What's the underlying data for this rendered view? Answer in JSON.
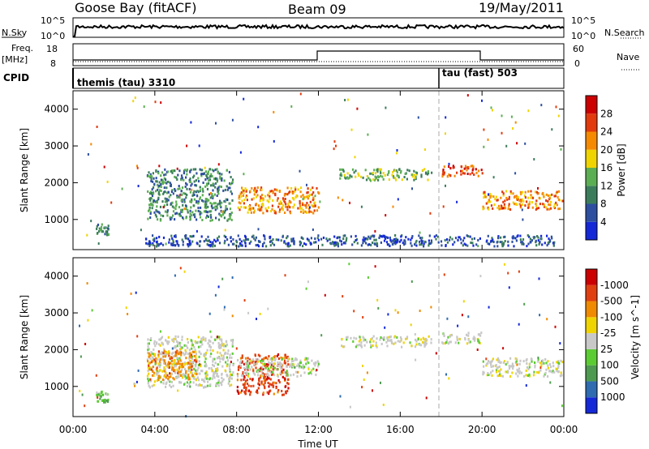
{
  "header": {
    "station": "Goose Bay (fitACF)",
    "beam": "Beam 09",
    "date": "19/May/2011"
  },
  "top_panel": {
    "left_label": "N.Sky",
    "right_label": "N.Search",
    "left_ticks": [
      "10^5",
      "10^0"
    ],
    "right_ticks": [
      "10^5",
      "10^0"
    ]
  },
  "freq_panel": {
    "left_label_1": "Freq.",
    "left_label_2": "[MHz]",
    "right_label": "Nave",
    "left_ticks": [
      "18",
      "8"
    ],
    "right_ticks": [
      "60",
      "0"
    ]
  },
  "cpid_panel": {
    "label": "CPID",
    "mode_1": "themis (tau) 3310",
    "mode_2": "tau (fast) 503"
  },
  "x_axis": {
    "label": "Time UT",
    "ticks": [
      "00:00",
      "04:00",
      "08:00",
      "12:00",
      "16:00",
      "20:00",
      "00:00"
    ]
  },
  "chart_data": [
    {
      "type": "heatmap",
      "ylabel": "Slant Range [km]",
      "y_ticks": [
        "1000",
        "2000",
        "3000",
        "4000"
      ],
      "ylim": [
        180,
        4500
      ],
      "xlim_hours": [
        0,
        24
      ],
      "colorbar": {
        "label": "Power [dB]",
        "ticks": [
          "4",
          "8",
          "12",
          "16",
          "20",
          "24",
          "28"
        ],
        "colors": [
          "#1428d8",
          "#2e4fa0",
          "#3b7d5b",
          "#5cae53",
          "#f0d400",
          "#f58a00",
          "#e23a0d",
          "#cc0000"
        ]
      },
      "regions": [
        {
          "t0": 3.6,
          "t1": 7.8,
          "r0": 1000,
          "r1": 2400,
          "level": 2
        },
        {
          "t0": 8.0,
          "t1": 12.0,
          "r0": 1200,
          "r1": 1900,
          "level": 5
        },
        {
          "t0": 13.0,
          "t1": 17.5,
          "r0": 2100,
          "r1": 2400,
          "level": 3
        },
        {
          "t0": 18.0,
          "t1": 20.0,
          "r0": 2200,
          "r1": 2500,
          "level": 6
        },
        {
          "t0": 20.0,
          "t1": 23.9,
          "r0": 1300,
          "r1": 1800,
          "level": 5
        },
        {
          "t0": 1.1,
          "t1": 1.7,
          "r0": 600,
          "r1": 900,
          "level": 2
        },
        {
          "t0": 3.5,
          "t1": 23.5,
          "r0": 300,
          "r1": 600,
          "level": 1
        }
      ]
    },
    {
      "type": "heatmap",
      "ylabel": "Slant Range [km]",
      "y_ticks": [
        "1000",
        "2000",
        "3000",
        "4000"
      ],
      "ylim": [
        180,
        4500
      ],
      "xlim_hours": [
        0,
        24
      ],
      "colorbar": {
        "label": "Velocity [m s^-1]",
        "ticks": [
          "1000",
          "500",
          "100",
          "25",
          "-25",
          "-100",
          "-500",
          "-1000"
        ],
        "colors": [
          "#1428d8",
          "#2e6bb0",
          "#4e9a50",
          "#5ccc33",
          "#c8c8c8",
          "#f0d400",
          "#f08a00",
          "#e04010",
          "#cc0000"
        ]
      },
      "regions": [
        {
          "t0": 3.6,
          "t1": 7.8,
          "r0": 1000,
          "r1": 2400,
          "level": 4
        },
        {
          "t0": 3.6,
          "t1": 6.0,
          "r0": 1200,
          "r1": 2000,
          "level": 6
        },
        {
          "t0": 8.0,
          "t1": 10.5,
          "r0": 800,
          "r1": 1900,
          "level": 7
        },
        {
          "t0": 8.0,
          "t1": 12.0,
          "r0": 1300,
          "r1": 1800,
          "level": 4
        },
        {
          "t0": 13.0,
          "t1": 17.5,
          "r0": 2100,
          "r1": 2400,
          "level": 4
        },
        {
          "t0": 18.0,
          "t1": 20.0,
          "r0": 2200,
          "r1": 2500,
          "level": 4
        },
        {
          "t0": 20.0,
          "t1": 23.9,
          "r0": 1300,
          "r1": 1800,
          "level": 4
        },
        {
          "t0": 1.1,
          "t1": 1.7,
          "r0": 600,
          "r1": 900,
          "level": 3
        }
      ]
    }
  ]
}
